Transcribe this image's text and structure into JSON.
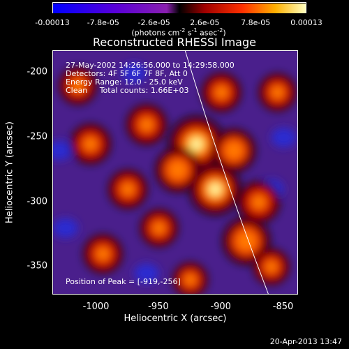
{
  "chart_data": {
    "type": "heatmap",
    "title": "Reconstructed RHESSI Image",
    "xlabel": "Heliocentric X (arcsec)",
    "ylabel": "Heliocentric Y (arcsec)",
    "xlim": [
      -1035,
      -838
    ],
    "ylim": [
      -372,
      -183
    ],
    "x_ticks": [
      "-1000",
      "-950",
      "-900",
      "-850"
    ],
    "x_tick_values": [
      -1000,
      -950,
      -900,
      -850
    ],
    "y_ticks": [
      "-200",
      "-250",
      "-300",
      "-350"
    ],
    "y_tick_values": [
      -200,
      -250,
      -300,
      -350
    ],
    "colorbar": {
      "ticks": [
        "-0.00013",
        "-7.8e-05",
        "-2.6e-05",
        "2.6e-05",
        "7.8e-05",
        "0.00013"
      ],
      "tick_values": [
        -0.00013,
        -7.8e-05,
        -2.6e-05,
        2.6e-05,
        7.8e-05,
        0.00013
      ],
      "unit_text": "(photons cm",
      "unit_parts": [
        "(photons cm",
        "-2",
        " s",
        "-1",
        " asec",
        "-2",
        ")"
      ]
    },
    "annotations": [
      "27-May-2002 14:26:56.000 to 14:29:58.000",
      "Detectors: 4F 5F 6F 7F 8F, Att 0",
      "Energy Range: 12.0 - 25.0 keV",
      "Clean     Total counts: 1.66E+03"
    ],
    "peak_text": "Position of Peak = [-919,-256]",
    "peak": [
      -919,
      -256
    ],
    "blobs": [
      {
        "x": -920,
        "y": -255,
        "v": 1.0
      },
      {
        "x": -905,
        "y": -290,
        "v": 0.85
      },
      {
        "x": -880,
        "y": -330,
        "v": 0.7
      },
      {
        "x": -890,
        "y": -260,
        "v": 0.55
      },
      {
        "x": -935,
        "y": -275,
        "v": 0.6
      },
      {
        "x": -870,
        "y": -300,
        "v": 0.5
      },
      {
        "x": -960,
        "y": -240,
        "v": 0.45
      },
      {
        "x": -975,
        "y": -290,
        "v": 0.4
      },
      {
        "x": -1005,
        "y": -255,
        "v": 0.45
      },
      {
        "x": -1015,
        "y": -210,
        "v": 0.35
      },
      {
        "x": -995,
        "y": -340,
        "v": 0.4
      },
      {
        "x": -925,
        "y": -360,
        "v": 0.25
      },
      {
        "x": -855,
        "y": -215,
        "v": 0.35
      },
      {
        "x": -860,
        "y": -350,
        "v": 0.3
      },
      {
        "x": -950,
        "y": -320,
        "v": 0.35
      },
      {
        "x": -900,
        "y": -215,
        "v": 0.4
      }
    ],
    "colors": {
      "low": "#0000ff",
      "mid": "#4a1f8c",
      "high": "#ffffff",
      "hot": "#ff7a00"
    }
  },
  "footer": {
    "date": "20-Apr-2013 13:47"
  }
}
